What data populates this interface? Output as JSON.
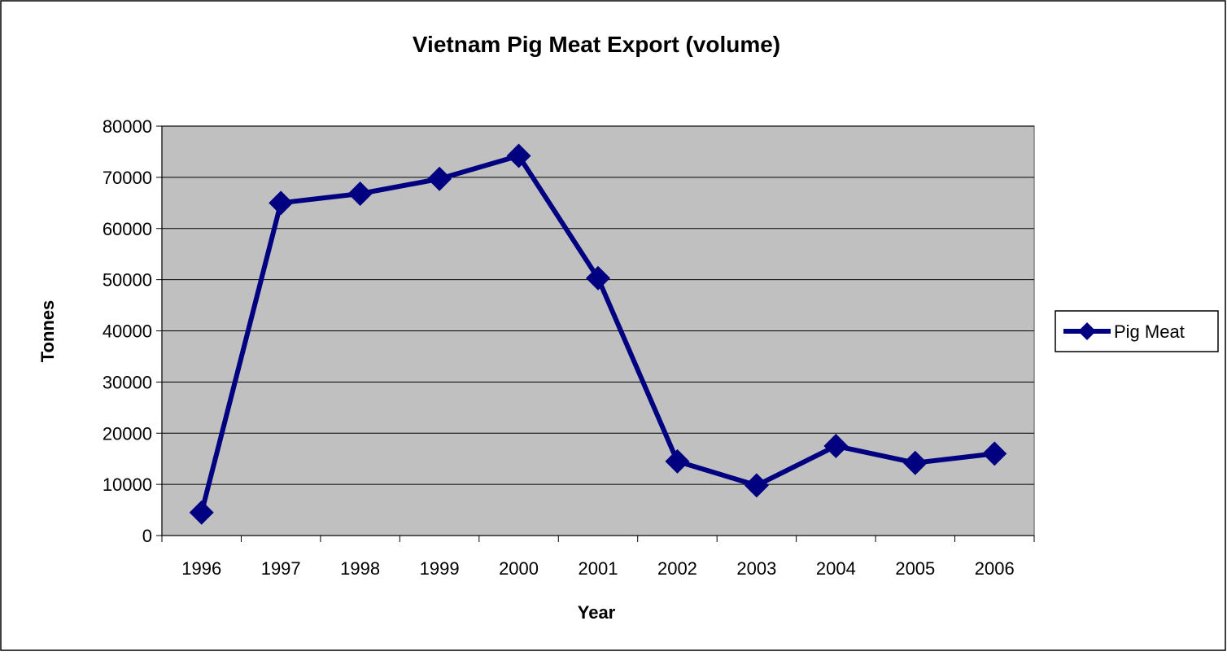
{
  "chart_data": {
    "type": "line",
    "title": "Vietnam Pig Meat Export (volume)",
    "xlabel": "Year",
    "ylabel": "Tonnes",
    "categories": [
      "1996",
      "1997",
      "1998",
      "1999",
      "2000",
      "2001",
      "2002",
      "2003",
      "2004",
      "2005",
      "2006"
    ],
    "series": [
      {
        "name": "Pig Meat",
        "values": [
          4500,
          65000,
          66800,
          69700,
          74200,
          50300,
          14500,
          9800,
          17500,
          14200,
          16000
        ]
      }
    ],
    "ylim": [
      0,
      80000
    ],
    "yticks": [
      "0",
      "10000",
      "20000",
      "30000",
      "40000",
      "50000",
      "60000",
      "70000",
      "80000"
    ],
    "grid": true,
    "legend_position": "right",
    "colors": {
      "series": "#000080",
      "plot_background": "#C0C0C0",
      "gridline": "#000000",
      "frame": "#000000"
    }
  }
}
